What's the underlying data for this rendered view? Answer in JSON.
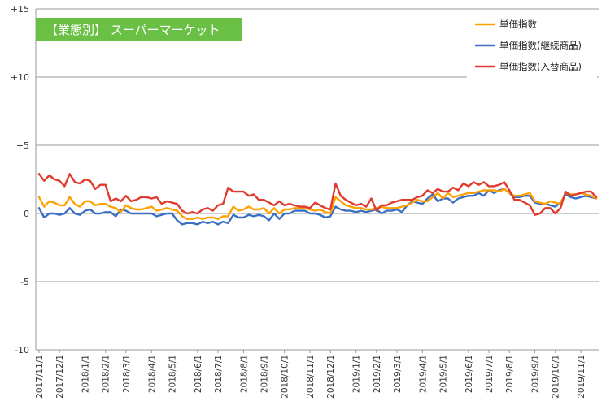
{
  "chart_data": {
    "type": "line",
    "title": "【業態別】 スーパーマーケット",
    "ylim": [
      -10,
      15
    ],
    "yticks": [
      -10,
      -5,
      0,
      5,
      10,
      15
    ],
    "ytick_labels": [
      "-10",
      "-5",
      "0",
      "+5",
      "+10",
      "+15"
    ],
    "grid": "horizontal",
    "legend": "top-right",
    "x_tick_labels": [
      {
        "i": 0,
        "label": "2017/11/1"
      },
      {
        "i": 4,
        "label": "2017/12/1"
      },
      {
        "i": 9,
        "label": "2018/1/1"
      },
      {
        "i": 13,
        "label": "2018/2/1"
      },
      {
        "i": 17,
        "label": "2018/3/1"
      },
      {
        "i": 22,
        "label": "2018/4/1"
      },
      {
        "i": 26,
        "label": "2018/5/1"
      },
      {
        "i": 31,
        "label": "2018/6/1"
      },
      {
        "i": 35,
        "label": "2018/7/1"
      },
      {
        "i": 40,
        "label": "2018/8/1"
      },
      {
        "i": 44,
        "label": "2018/9/1"
      },
      {
        "i": 48,
        "label": "2018/10/1"
      },
      {
        "i": 53,
        "label": "2018/11/1"
      },
      {
        "i": 57,
        "label": "2018/12/1"
      },
      {
        "i": 62,
        "label": "2019/1/1"
      },
      {
        "i": 66,
        "label": "2019/2/1"
      },
      {
        "i": 70,
        "label": "2019/3/1"
      },
      {
        "i": 75,
        "label": "2019/4/1"
      },
      {
        "i": 79,
        "label": "2019/5/1"
      },
      {
        "i": 84,
        "label": "2019/6/1"
      },
      {
        "i": 88,
        "label": "2019/7/1"
      },
      {
        "i": 92,
        "label": "2019/8/1"
      },
      {
        "i": 97,
        "label": "2019/9/1"
      },
      {
        "i": 101,
        "label": "2019/10/1"
      },
      {
        "i": 106,
        "label": "2019/11/1"
      }
    ],
    "series": [
      {
        "name": "単価指数",
        "color": "#ffa000",
        "values": [
          1.2,
          0.5,
          0.9,
          0.8,
          0.6,
          0.6,
          1.2,
          0.7,
          0.5,
          0.9,
          0.9,
          0.6,
          0.7,
          0.7,
          0.5,
          0.4,
          0.1,
          0.6,
          0.4,
          0.3,
          0.3,
          0.4,
          0.5,
          0.2,
          0.3,
          0.4,
          0.3,
          0.2,
          -0.2,
          -0.4,
          -0.4,
          -0.3,
          -0.4,
          -0.3,
          -0.3,
          -0.4,
          -0.2,
          -0.2,
          0.5,
          0.2,
          0.3,
          0.5,
          0.3,
          0.3,
          0.4,
          0.0,
          0.4,
          0.0,
          0.3,
          0.3,
          0.4,
          0.4,
          0.4,
          0.3,
          0.2,
          0.3,
          0.1,
          0.0,
          1.2,
          0.9,
          0.6,
          0.5,
          0.4,
          0.4,
          0.3,
          0.3,
          0.4,
          0.5,
          0.4,
          0.4,
          0.4,
          0.5,
          0.6,
          0.8,
          1.0,
          0.9,
          0.9,
          1.2,
          1.5,
          1.1,
          1.5,
          1.2,
          1.3,
          1.4,
          1.5,
          1.5,
          1.6,
          1.7,
          1.7,
          1.7,
          1.6,
          1.8,
          1.5,
          1.3,
          1.3,
          1.4,
          1.5,
          0.9,
          0.8,
          0.7,
          0.9,
          0.8,
          0.7,
          1.5,
          1.4,
          1.4,
          1.5,
          1.4,
          1.3,
          1.1
        ],
        "note": ""
      },
      {
        "name": "単価指数(継続商品)",
        "color": "#3a6fc4",
        "values": [
          0.4,
          -0.3,
          0.0,
          0.0,
          -0.1,
          0.0,
          0.4,
          0.0,
          -0.1,
          0.2,
          0.3,
          0.0,
          0.0,
          0.1,
          0.1,
          -0.2,
          0.3,
          0.2,
          0.0,
          0.0,
          0.0,
          0.0,
          0.0,
          -0.2,
          -0.1,
          0.0,
          0.0,
          -0.5,
          -0.8,
          -0.7,
          -0.7,
          -0.8,
          -0.6,
          -0.7,
          -0.6,
          -0.8,
          -0.6,
          -0.7,
          -0.1,
          -0.3,
          -0.3,
          -0.1,
          -0.2,
          -0.1,
          -0.2,
          -0.5,
          0.0,
          -0.4,
          0.0,
          0.0,
          0.2,
          0.2,
          0.2,
          0.0,
          0.0,
          -0.1,
          -0.3,
          -0.2,
          0.5,
          0.3,
          0.2,
          0.2,
          0.1,
          0.2,
          0.1,
          0.2,
          0.3,
          0.0,
          0.2,
          0.2,
          0.3,
          0.1,
          0.6,
          0.9,
          0.8,
          0.7,
          1.1,
          1.4,
          0.9,
          1.1,
          1.1,
          0.8,
          1.1,
          1.2,
          1.3,
          1.3,
          1.5,
          1.3,
          1.7,
          1.5,
          1.7,
          1.8,
          1.5,
          1.2,
          1.2,
          1.3,
          1.3,
          0.8,
          0.7,
          0.7,
          0.6,
          0.5,
          0.8,
          1.4,
          1.2,
          1.1,
          1.2,
          1.3,
          1.2,
          1.1
        ],
        "note": ""
      },
      {
        "name": "単価指数(入替商品)",
        "color": "#e03a2e",
        "values": [
          2.9,
          2.4,
          2.8,
          2.5,
          2.4,
          2.0,
          2.9,
          2.3,
          2.2,
          2.5,
          2.4,
          1.8,
          2.1,
          2.1,
          0.9,
          1.1,
          0.9,
          1.3,
          0.9,
          1.0,
          1.2,
          1.2,
          1.1,
          1.2,
          0.7,
          0.9,
          0.8,
          0.7,
          0.2,
          0.0,
          0.1,
          0.0,
          0.3,
          0.4,
          0.2,
          0.6,
          0.7,
          1.9,
          1.6,
          1.6,
          1.6,
          1.3,
          1.4,
          1.0,
          1.0,
          0.8,
          0.6,
          0.9,
          0.6,
          0.7,
          0.6,
          0.5,
          0.5,
          0.4,
          0.8,
          0.6,
          0.4,
          0.3,
          2.2,
          1.3,
          1.0,
          0.8,
          0.6,
          0.7,
          0.5,
          1.1,
          0.2,
          0.6,
          0.6,
          0.8,
          0.9,
          1.0,
          1.0,
          1.0,
          1.2,
          1.3,
          1.7,
          1.5,
          1.8,
          1.6,
          1.6,
          1.9,
          1.7,
          2.2,
          2.0,
          2.3,
          2.1,
          2.3,
          2.0,
          2.0,
          2.1,
          2.3,
          1.7,
          1.0,
          1.0,
          0.8,
          0.6,
          -0.1,
          0.0,
          0.4,
          0.4,
          0.0,
          0.4,
          1.6,
          1.3,
          1.4,
          1.5,
          1.6,
          1.6,
          1.2
        ],
        "note": ""
      }
    ]
  }
}
